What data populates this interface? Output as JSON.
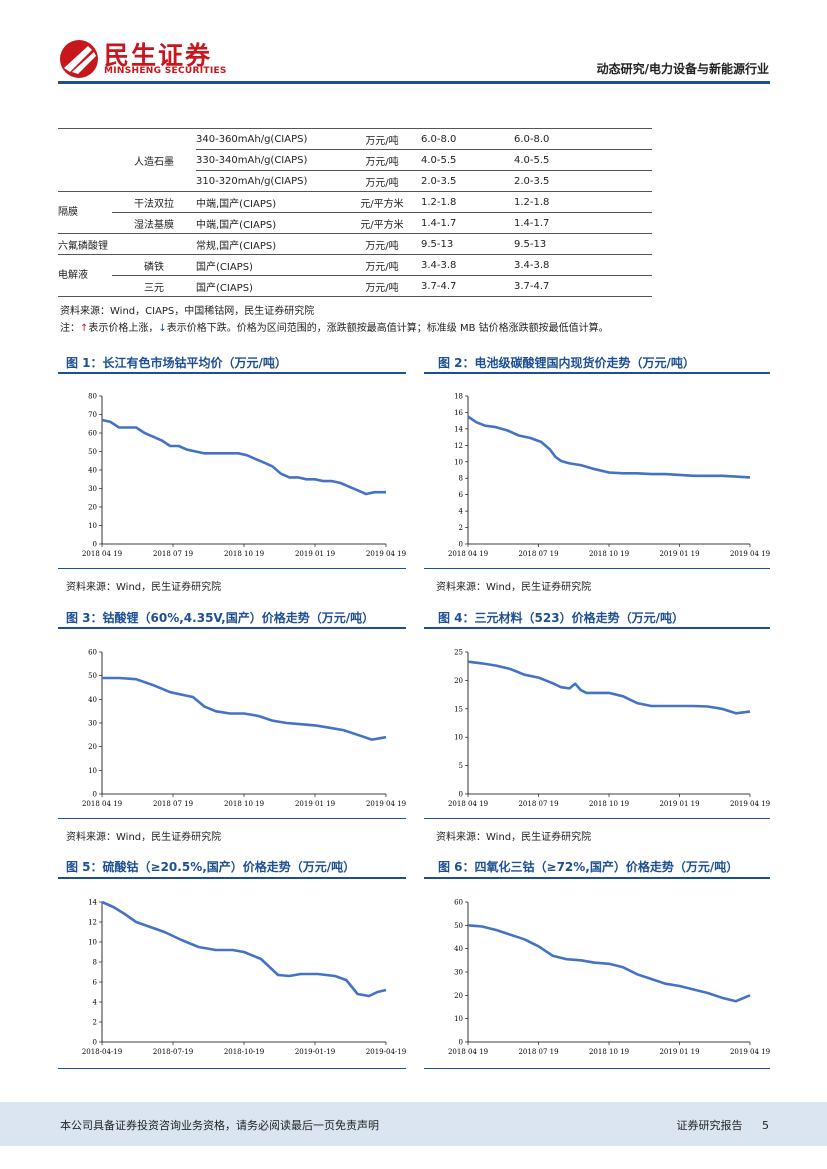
{
  "header": {
    "logo_cn": "民生证券",
    "logo_en": "MINSHENG SECURITIES",
    "category": "动态研究/电力设备与新能源行业",
    "brand_red": "#c8161d",
    "accent_blue": "#1d4f95"
  },
  "table": {
    "rows": [
      {
        "cat": "",
        "sub": "",
        "spec": "340-360mAh/g(CIAPS)",
        "unit": "万元/吨",
        "v1": "6.0-8.0",
        "v2": "6.0-8.0"
      },
      {
        "cat": "",
        "sub": "人造石墨",
        "spec": "330-340mAh/g(CIAPS)",
        "unit": "万元/吨",
        "v1": "4.0-5.5",
        "v2": "4.0-5.5"
      },
      {
        "cat": "",
        "sub": "",
        "spec": "310-320mAh/g(CIAPS)",
        "unit": "万元/吨",
        "v1": "2.0-3.5",
        "v2": "2.0-3.5"
      },
      {
        "cat": "",
        "sub": "干法双拉",
        "spec": "中端,国产(CIAPS)",
        "unit": "元/平方米",
        "v1": "1.2-1.8",
        "v2": "1.2-1.8"
      },
      {
        "cat": "隔膜",
        "sub": "湿法基膜",
        "spec": "中端,国产(CIAPS)",
        "unit": "元/平方米",
        "v1": "1.4-1.7",
        "v2": "1.4-1.7"
      },
      {
        "cat": "六氟磷酸锂",
        "sub": "",
        "spec": "常规,国产(CIAPS)",
        "unit": "万元/吨",
        "v1": "9.5-13",
        "v2": "9.5-13"
      },
      {
        "cat": "",
        "sub": "磷铁",
        "spec": "国产(CIAPS)",
        "unit": "万元/吨",
        "v1": "3.4-3.8",
        "v2": "3.4-3.8"
      },
      {
        "cat": "电解液",
        "sub": "三元",
        "spec": "国产(CIAPS)",
        "unit": "万元/吨",
        "v1": "3.7-4.7",
        "v2": "3.7-4.7"
      }
    ],
    "source": "资料来源：Wind，CIAPS，中国稀钴网，民生证券研究院",
    "note_prefix": "注：",
    "note_up_arrow": "↑",
    "note_up_text": "表示价格上涨，",
    "note_down_arrow": "↓",
    "note_down_text": "表示价格下跌。价格为区间范围的，涨跌额按最高值计算；标准级 MB 钴价格涨跌额按最低值计算。"
  },
  "chart_source": "资料来源：Wind，民生证券研究院",
  "chart_data": [
    {
      "type": "line",
      "title": "图 1：长江有色市场钴平均价（万元/吨）",
      "x_ticks": [
        "2018 04 19",
        "2018 07 19",
        "2018 10 19",
        "2019 01 19",
        "2019 04 19"
      ],
      "ylim": [
        0,
        80
      ],
      "y_ticks": [
        0,
        10,
        20,
        30,
        40,
        50,
        60,
        70,
        80
      ],
      "x": [
        0,
        3,
        6,
        9,
        12,
        15,
        18,
        21,
        24,
        27,
        30,
        33,
        36,
        39,
        42,
        45,
        48,
        51,
        54,
        57,
        60,
        63,
        66,
        69,
        72,
        75,
        78,
        81,
        84,
        87,
        90,
        93,
        96,
        100
      ],
      "y": [
        67,
        66,
        63,
        63,
        63,
        60,
        58,
        56,
        53,
        53,
        51,
        50,
        49,
        49,
        49,
        49,
        49,
        48,
        46,
        44,
        42,
        38,
        36,
        36,
        35,
        35,
        34,
        34,
        33,
        31,
        29,
        27,
        28,
        28
      ]
    },
    {
      "type": "line",
      "title": "图 2：电池级碳酸锂国内现货价走势（万元/吨）",
      "x_ticks": [
        "2018 04 19",
        "2018 07 19",
        "2018 10 19",
        "2019 01 19",
        "2019 04 19"
      ],
      "ylim": [
        0,
        18
      ],
      "y_ticks": [
        0,
        2,
        4,
        6,
        8,
        10,
        12,
        14,
        16,
        18
      ],
      "x": [
        0,
        3,
        6,
        10,
        14,
        18,
        22,
        26,
        29,
        31,
        33,
        36,
        40,
        45,
        50,
        55,
        60,
        65,
        70,
        75,
        80,
        85,
        90,
        95,
        100
      ],
      "y": [
        15.5,
        14.8,
        14.4,
        14.2,
        13.8,
        13.2,
        12.9,
        12.4,
        11.5,
        10.6,
        10.1,
        9.8,
        9.6,
        9.1,
        8.7,
        8.6,
        8.6,
        8.5,
        8.5,
        8.4,
        8.3,
        8.3,
        8.3,
        8.2,
        8.1
      ]
    },
    {
      "type": "line",
      "title": "图 3：钴酸锂（60%,4.35V,国产）价格走势（万元/吨）",
      "x_ticks": [
        "2018 04 19",
        "2018 07 19",
        "2018 10 19",
        "2019 01 19",
        "2019 04 19"
      ],
      "ylim": [
        0,
        60
      ],
      "y_ticks": [
        0,
        10,
        20,
        30,
        40,
        50,
        60
      ],
      "x": [
        0,
        6,
        12,
        18,
        24,
        28,
        32,
        36,
        40,
        45,
        50,
        55,
        60,
        65,
        70,
        75,
        80,
        85,
        90,
        95,
        100
      ],
      "y": [
        49,
        49,
        48.5,
        46,
        43,
        42,
        41,
        37,
        35,
        34,
        34,
        33,
        31,
        30,
        29.5,
        29,
        28,
        27,
        25,
        23,
        24
      ]
    },
    {
      "type": "line",
      "title": "图 4：三元材料（523）价格走势（万元/吨）",
      "x_ticks": [
        "2018 04 19",
        "2018 07 19",
        "2018 10 19",
        "2019 01 19",
        "2019 04 19"
      ],
      "ylim": [
        0,
        25
      ],
      "y_ticks": [
        0,
        5,
        10,
        15,
        20,
        25
      ],
      "x": [
        0,
        5,
        10,
        15,
        20,
        25,
        30,
        33,
        36,
        38,
        40,
        42,
        45,
        50,
        55,
        60,
        65,
        70,
        75,
        80,
        85,
        90,
        95,
        100
      ],
      "y": [
        23.3,
        23,
        22.6,
        22,
        21,
        20.5,
        19.5,
        18.8,
        18.6,
        19.4,
        18.3,
        17.8,
        17.8,
        17.8,
        17.2,
        16,
        15.5,
        15.5,
        15.5,
        15.5,
        15.4,
        15,
        14.2,
        14.5
      ]
    },
    {
      "type": "line",
      "title": "图 5：硫酸钴（≥20.5%,国产）价格走势（万元/吨）",
      "x_ticks": [
        "2018-04-19",
        "2018-07-19",
        "2018-10-19",
        "2019-01-19",
        "2019-04-19"
      ],
      "ylim": [
        0,
        14
      ],
      "y_ticks": [
        0,
        2,
        4,
        6,
        8,
        10,
        12,
        14
      ],
      "x": [
        0,
        4,
        8,
        12,
        16,
        22,
        28,
        34,
        40,
        46,
        50,
        56,
        62,
        66,
        70,
        76,
        82,
        86,
        90,
        94,
        97,
        100
      ],
      "y": [
        14,
        13.5,
        12.8,
        12,
        11.6,
        11,
        10.2,
        9.5,
        9.2,
        9.2,
        9,
        8.3,
        6.7,
        6.6,
        6.8,
        6.8,
        6.6,
        6.2,
        4.8,
        4.6,
        5,
        5.2
      ]
    },
    {
      "type": "line",
      "title": "图 6：四氧化三钴（≥72%,国产）价格走势（万元/吨）",
      "x_ticks": [
        "2018 04 19",
        "2018 07 19",
        "2018 10 19",
        "2019 01 19",
        "2019 04 19"
      ],
      "ylim": [
        0,
        60
      ],
      "y_ticks": [
        0,
        10,
        20,
        30,
        40,
        50,
        60
      ],
      "x": [
        0,
        5,
        10,
        15,
        20,
        25,
        30,
        35,
        40,
        45,
        50,
        55,
        60,
        65,
        70,
        75,
        80,
        85,
        90,
        95,
        100
      ],
      "y": [
        50,
        49.5,
        48,
        46,
        44,
        41,
        37,
        35.5,
        35,
        34,
        33.5,
        32,
        29,
        27,
        25,
        24,
        22.5,
        21,
        19,
        17.5,
        20
      ]
    }
  ],
  "footer": {
    "disclaimer": "本公司具备证券投资咨询业务资格，请务必阅读最后一页免责声明",
    "report_type": "证券研究报告",
    "page_number": "5"
  }
}
